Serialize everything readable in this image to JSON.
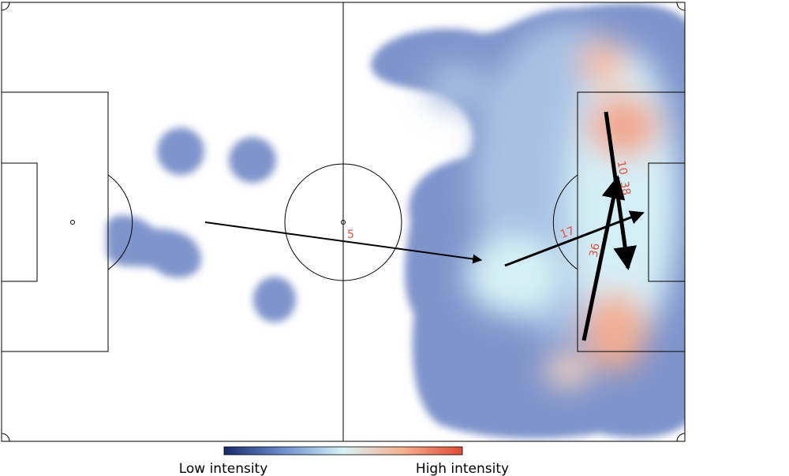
{
  "arrows": [
    {
      "label": "5"
    },
    {
      "label": "17"
    },
    {
      "label": "36"
    },
    {
      "label": "10"
    },
    {
      "label": "38"
    }
  ],
  "colorbar": {
    "low_label": "Low intensity",
    "high_label": "High intensity"
  }
}
